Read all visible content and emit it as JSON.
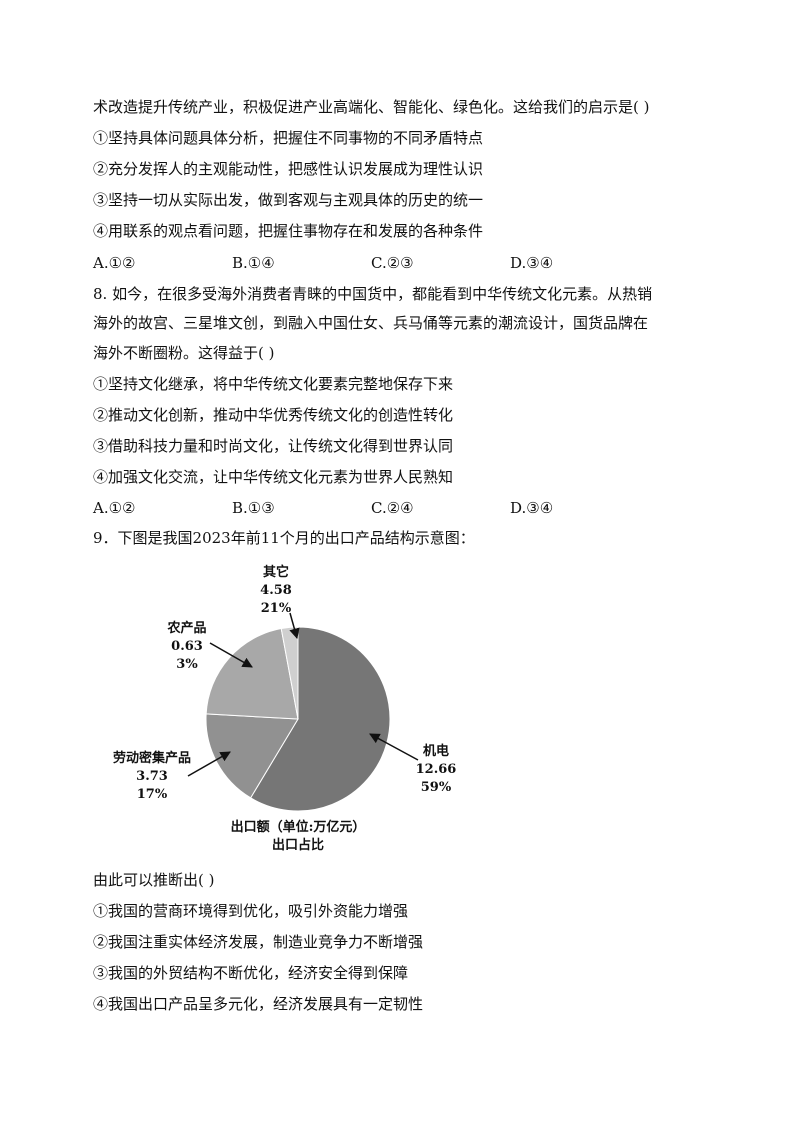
{
  "q7": {
    "stem_tail": "术改造提升传统产业，积极促进产业高端化、智能化、绿色化。这给我们的启示是( )",
    "items": [
      "①坚持具体问题具体分析，把握住不同事物的不同矛盾特点",
      "②充分发挥人的主观能动性，把感性认识发展成为理性认识",
      "③坚持一切从实际出发，做到客观与主观具体的历史的统一",
      "④用联系的观点看问题，把握住事物存在和发展的各种条件"
    ],
    "options": [
      "A.①②",
      "B.①④",
      "C.②③",
      "D.③④"
    ]
  },
  "q8": {
    "stem": [
      "8. 如今，在很多受海外消费者青睐的中国货中，都能看到中华传统文化元素。从热销",
      "海外的故宫、三星堆文创，到融入中国仕女、兵马俑等元素的潮流设计，国货品牌在",
      "海外不断圈粉。这得益于( )"
    ],
    "items": [
      "①坚持文化继承，将中华传统文化要素完整地保存下来",
      "②推动文化创新，推动中华优秀传统文化的创造性转化",
      "③借助科技力量和时尚文化，让传统文化得到世界认同",
      "④加强文化交流，让中华传统文化元素为世界人民熟知"
    ],
    "options": [
      "A.①②",
      "B.①③",
      "C.②④",
      "D.③④"
    ]
  },
  "q9": {
    "stem": "9．下图是我国2023年前11个月的出口产品结构示意图：",
    "after": "由此可以推断出( )",
    "items": [
      "①我国的营商环境得到优化，吸引外资能力增强",
      "②我国注重实体经济发展，制造业竞争力不断增强",
      "③我国的外贸结构不断优化，经济安全得到保障",
      "④我国出口产品呈多元化，经济发展具有一定韧性"
    ]
  },
  "chart_data": {
    "type": "pie",
    "title": "",
    "caption_line1": "出口额（单位:万亿元）",
    "caption_line2": "出口占比",
    "slices": [
      {
        "label": "机电",
        "value": 12.66,
        "value_text": "12.66",
        "percent": "59%",
        "color": "#767676"
      },
      {
        "label": "劳动密集产品",
        "value": 3.73,
        "value_text": "3.73",
        "percent": "17%",
        "color": "#919191"
      },
      {
        "label": "其它",
        "value": 4.58,
        "value_text": "4.58",
        "percent": "21%",
        "color": "#a8a8a8"
      },
      {
        "label": "农产品",
        "value": 0.63,
        "value_text": "0.63",
        "percent": "3%",
        "color": "#cfcfcf"
      }
    ]
  }
}
